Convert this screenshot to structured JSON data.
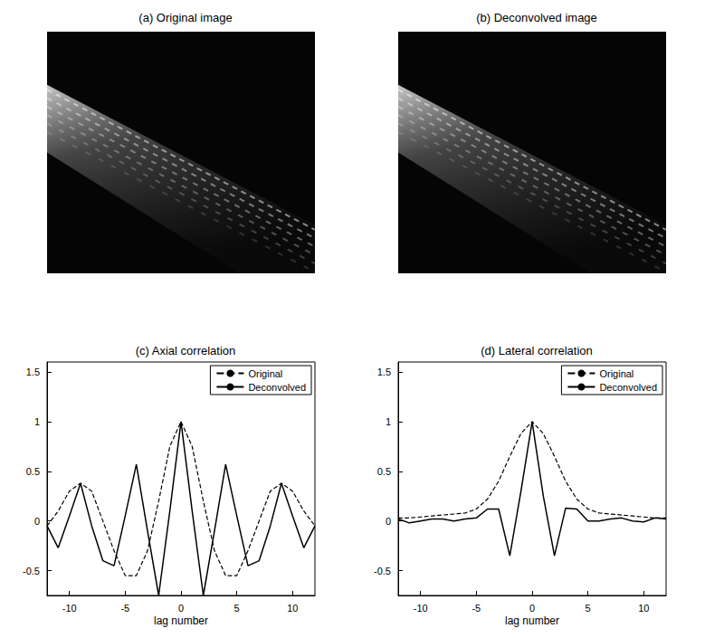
{
  "chart_data": [
    {
      "type": "image",
      "title": "(a) Original image"
    },
    {
      "type": "image",
      "title": "(b) Deconvolved image"
    },
    {
      "type": "line",
      "title": "(c) Axial correlation",
      "xlabel": "lag number",
      "x": [
        -12,
        -11,
        -10,
        -9,
        -8,
        -7,
        -6,
        -5,
        -4,
        -3,
        -2,
        -1,
        0,
        1,
        2,
        3,
        4,
        5,
        6,
        7,
        8,
        9,
        10,
        11,
        12
      ],
      "series": [
        {
          "name": "Original",
          "color": "#000000",
          "line_style": "dashed",
          "values": [
            -0.05,
            0.1,
            0.3,
            0.38,
            0.3,
            0.0,
            -0.3,
            -0.55,
            -0.55,
            -0.3,
            0.2,
            0.75,
            1,
            0.75,
            0.2,
            -0.3,
            -0.55,
            -0.55,
            -0.3,
            0.0,
            0.3,
            0.38,
            0.3,
            0.1,
            -0.05
          ]
        },
        {
          "name": "Deconvolved",
          "color": "#000000",
          "line_style": "solid",
          "values": [
            -0.05,
            -0.27,
            0.05,
            0.38,
            -0.05,
            -0.4,
            -0.45,
            0.05,
            0.57,
            -0.1,
            -0.75,
            0.1,
            1,
            0.1,
            -0.75,
            -0.1,
            0.57,
            0.05,
            -0.45,
            -0.4,
            -0.05,
            0.38,
            0.05,
            -0.27,
            -0.05
          ]
        }
      ],
      "xlim": [
        -12,
        12
      ],
      "xticks": [
        -10,
        -5,
        0,
        5,
        10
      ],
      "ylim": [
        -0.75,
        1.6
      ],
      "yticks": [
        -0.5,
        0,
        0.5,
        1,
        1.5
      ],
      "grid": false,
      "legend": "upper right"
    },
    {
      "type": "line",
      "title": "(d) Lateral correlation",
      "xlabel": "lag number",
      "x": [
        -12,
        -11,
        -10,
        -9,
        -8,
        -7,
        -6,
        -5,
        -4,
        -3,
        -2,
        -1,
        0,
        1,
        2,
        3,
        4,
        5,
        6,
        7,
        8,
        9,
        10,
        11,
        12
      ],
      "series": [
        {
          "name": "Original",
          "color": "#000000",
          "line_style": "dashed",
          "values": [
            0.03,
            0.03,
            0.04,
            0.05,
            0.06,
            0.07,
            0.08,
            0.12,
            0.22,
            0.4,
            0.65,
            0.88,
            1,
            0.88,
            0.65,
            0.4,
            0.22,
            0.12,
            0.08,
            0.07,
            0.06,
            0.05,
            0.04,
            0.03,
            0.03
          ]
        },
        {
          "name": "Deconvolved",
          "color": "#000000",
          "line_style": "solid",
          "values": [
            0.02,
            -0.02,
            0.0,
            0.02,
            0.02,
            0.0,
            0.02,
            0.03,
            0.12,
            0.12,
            -0.35,
            0.3,
            1,
            0.25,
            -0.35,
            0.13,
            0.12,
            0.0,
            0.0,
            0.02,
            0.03,
            0.0,
            -0.01,
            0.03,
            0.02
          ]
        }
      ],
      "xlim": [
        -12,
        12
      ],
      "xticks": [
        -10,
        -5,
        0,
        5,
        10
      ],
      "ylim": [
        -0.75,
        1.6
      ],
      "yticks": [
        -0.5,
        0,
        0.5,
        1,
        1.5
      ],
      "grid": false,
      "legend": "upper right"
    }
  ]
}
